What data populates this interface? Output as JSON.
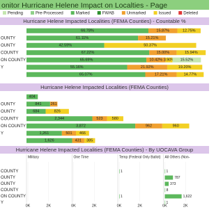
{
  "header": {
    "title": "onitor Hurricane Helene Impact on Localties - Page"
  },
  "legend": [
    {
      "name": "Pending",
      "color": "#c5e6b0"
    },
    {
      "name": "Pre-Processed",
      "color": "#8fd08a"
    },
    {
      "name": "Marked",
      "color": "#5cb85c"
    },
    {
      "name": "FWAB",
      "color": "#2f8f2f"
    },
    {
      "name": "Unmarked",
      "color": "#f0a030"
    },
    {
      "name": "Issued",
      "color": "#f2d024"
    },
    {
      "name": "Deleted",
      "color": "#e03a3a"
    }
  ],
  "chart_data": [
    {
      "type": "stacked-bar",
      "title": "Hurricane Helene Impacted Localities (FEMA Counties) - Countable %",
      "categories": [
        null,
        "OUNTY",
        "OUNTY",
        "COUNTY",
        "ON COUNTY",
        "Y",
        null
      ],
      "xlim": [
        0,
        100
      ],
      "series": [
        {
          "name": "Marked",
          "color": "#5cb85c",
          "values": [
            66.78,
            61.11,
            42.59,
            67.22,
            65.69,
            55.16,
            65.07
          ],
          "value_labels": [
            "66.78%",
            "61.11%",
            "42.59%",
            "67.22%",
            "65.69%",
            "55.16%",
            "65.07%"
          ]
        },
        {
          "name": "Unmarked",
          "color": "#f0a030",
          "values": [
            15.87,
            15.21,
            null,
            15.0,
            10.42,
            21.92,
            17.21
          ],
          "value_labels": [
            "15.87%",
            "15.21%",
            null,
            "15.00%",
            "10.42%",
            "21.92%",
            "17.21%"
          ]
        },
        {
          "name": "Issued",
          "color": "#f2d024",
          "values": [
            12.75,
            null,
            50.37,
            15.94,
            3.9,
            19.2,
            14.77
          ],
          "value_labels": [
            "12.75%",
            null,
            "50.37%",
            "15.94%",
            "3.90%",
            "19.20%",
            "14.77%"
          ]
        },
        {
          "name": "Pending",
          "color": "#c5e6b0",
          "values": [
            null,
            null,
            null,
            null,
            15.52,
            null,
            null
          ],
          "value_labels": [
            null,
            null,
            null,
            null,
            "15.52%",
            null,
            null
          ]
        }
      ]
    },
    {
      "type": "stacked-bar",
      "title": "Hurricane Helene Impacted Localities (FEMA Counties)",
      "categories": [
        null,
        "OUNTY",
        "OUNTY",
        "COUNTY",
        "ON COUNTY",
        "Y",
        null
      ],
      "xlim": [
        0,
        6500
      ],
      "series": [
        {
          "name": "Marked",
          "color": "#5cb85c",
          "values": [
            404,
            841,
            684,
            2344,
            3872,
            1261,
            1626
          ],
          "value_labels": [
            "404",
            "841",
            "684",
            "2,344",
            "3,872",
            "1,261",
            "1,626"
          ]
        },
        {
          "name": "Unmarked",
          "color": "#f0a030",
          "values": [
            null,
            261,
            null,
            523,
            962,
            501,
            431
          ],
          "value_labels": [
            null,
            "261",
            null,
            "523",
            "962",
            "501",
            "431"
          ]
        },
        {
          "name": "Issued",
          "color": "#f2d024",
          "values": [
            null,
            null,
            826,
            580,
            960,
            466,
            385
          ],
          "value_labels": [
            null,
            null,
            "826",
            "580",
            "960",
            "466",
            "385"
          ]
        }
      ]
    },
    {
      "type": "small-multiples",
      "title": "Hurricane Helene Impacted Localities (FEMA Counties) - By UOCAVA Group",
      "categories": [
        null,
        "COUNTY",
        "OUNTY",
        "OUNTY",
        "COUNTY",
        "ON COUNTY",
        "Y"
      ],
      "xlim": [
        0,
        4000
      ],
      "xticks": [
        {
          "value": 0,
          "label": "0K"
        },
        {
          "value": 2000,
          "label": "2K"
        }
      ],
      "panels": [
        {
          "name": "Military",
          "color": "#5cb85c",
          "values": [
            null,
            null,
            null,
            null,
            null,
            null,
            null
          ]
        },
        {
          "name": "One Time",
          "color": "#e03a3a",
          "values": [
            null,
            null,
            null,
            null,
            null,
            null,
            null
          ]
        },
        {
          "name": "Temp (Federal Only Ballot)",
          "color": "#5cb85c",
          "values": [
            null,
            1,
            null,
            null,
            null,
            1,
            null
          ]
        },
        {
          "name": "All Others (Non-",
          "color": "#5cb85c",
          "values": [
            null,
            1,
            787,
            373,
            8,
            1622,
            1
          ],
          "value_labels": [
            null,
            "1",
            "787",
            "373",
            "8",
            "1,622",
            "1"
          ]
        }
      ]
    }
  ]
}
